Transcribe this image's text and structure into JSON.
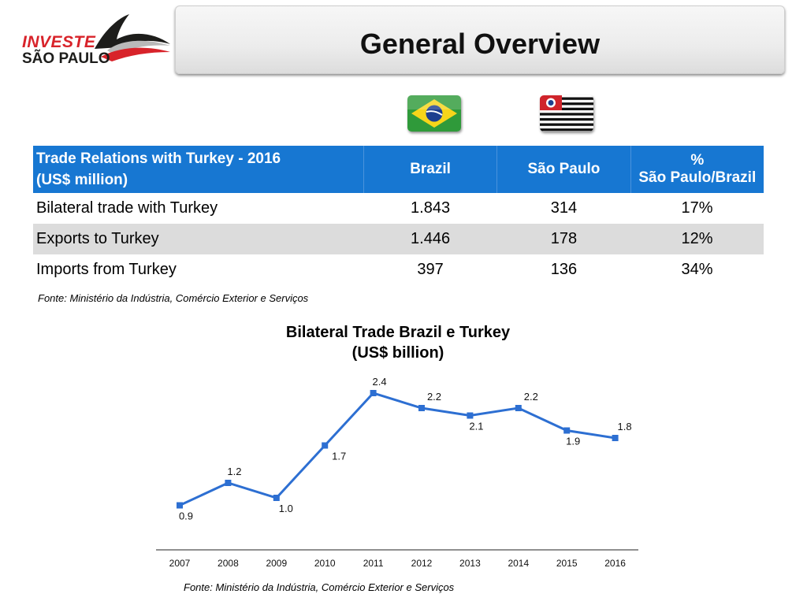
{
  "logo": {
    "line1": "INVESTE",
    "line2": "SÃO PAULO"
  },
  "header": {
    "title": "General Overview"
  },
  "flags": {
    "brazil": "brazil-flag-icon",
    "sao_paulo": "sao-paulo-flag-icon"
  },
  "table": {
    "headers": [
      [
        "Trade Relations with Turkey - 2016",
        "(US$ million)"
      ],
      [
        "Brazil"
      ],
      [
        "São Paulo"
      ],
      [
        "%",
        "São Paulo/Brazil"
      ]
    ],
    "rows": [
      [
        "Bilateral trade with Turkey",
        "1.843",
        "314",
        "17%"
      ],
      [
        "Exports to Turkey",
        "1.446",
        "178",
        "12%"
      ],
      [
        "Imports from Turkey",
        "397",
        "136",
        "34%"
      ]
    ],
    "source": "Fonte: Ministério da Indústria, Comércio Exterior e Serviços"
  },
  "chart_data": {
    "type": "line",
    "title": "Bilateral Trade Brazil e Turkey",
    "subtitle": "(US$ billion)",
    "categories": [
      "2007",
      "2008",
      "2009",
      "2010",
      "2011",
      "2012",
      "2013",
      "2014",
      "2015",
      "2016"
    ],
    "series": [
      {
        "name": "Bilateral Trade",
        "values": [
          0.9,
          1.2,
          1.0,
          1.7,
          2.4,
          2.2,
          2.1,
          2.2,
          1.9,
          1.8
        ],
        "labels": [
          "0.9",
          "1.2",
          "1.0",
          "1.7",
          "2.4",
          "2.2",
          "2.1",
          "2.2",
          "1.9",
          "1.8"
        ]
      }
    ],
    "ylim": [
      0,
      2.6
    ],
    "color": "#2d6fd2",
    "source": "Fonte: Ministério da Indústria, Comércio Exterior e Serviços"
  }
}
